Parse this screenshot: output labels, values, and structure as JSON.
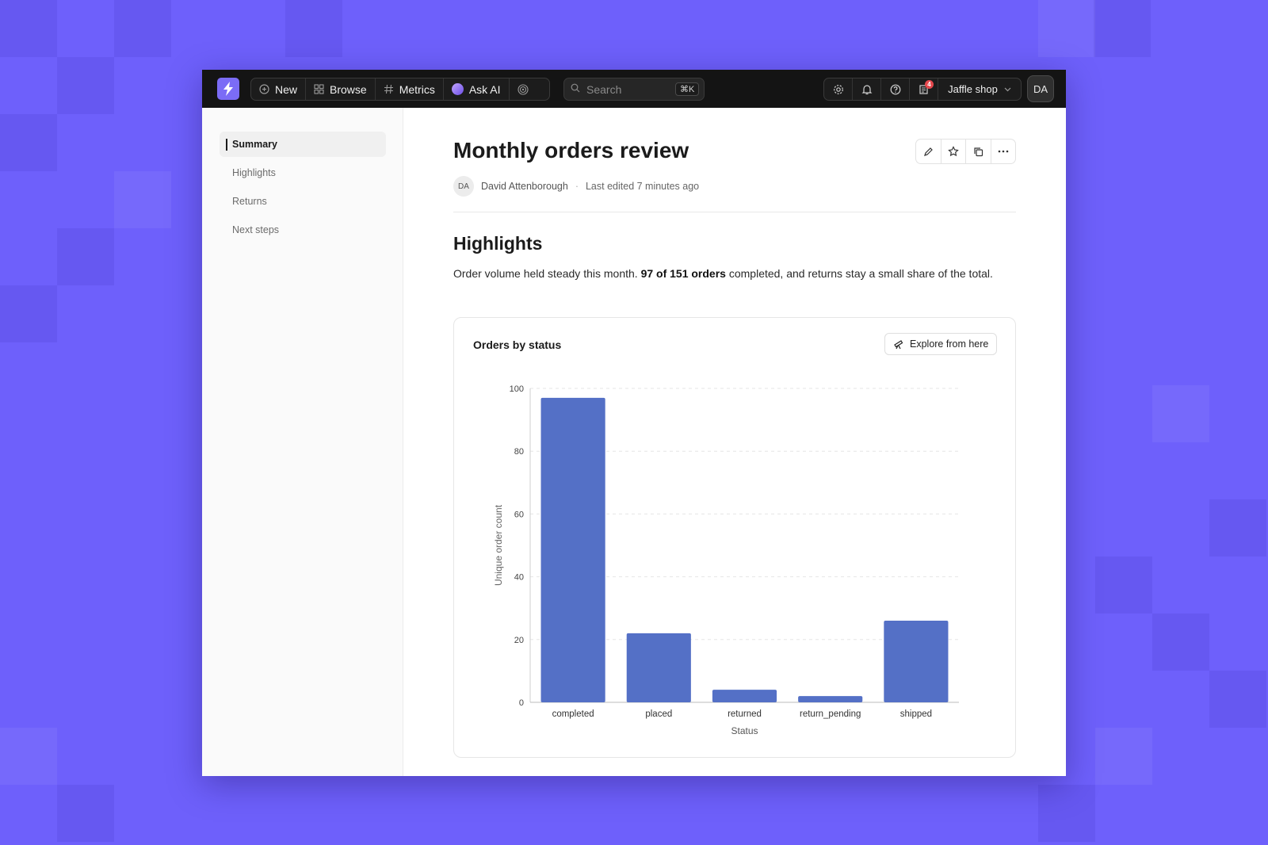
{
  "topbar": {
    "new_label": "New",
    "browse_label": "Browse",
    "metrics_label": "Metrics",
    "ask_ai_label": "Ask AI",
    "search_placeholder": "Search",
    "search_shortcut": "⌘K",
    "notifications_count": "4",
    "org_name": "Jaffle shop",
    "user_initials": "DA"
  },
  "sidebar": {
    "items": [
      {
        "label": "Summary",
        "active": true
      },
      {
        "label": "Highlights",
        "active": false
      },
      {
        "label": "Returns",
        "active": false
      },
      {
        "label": "Next steps",
        "active": false
      }
    ]
  },
  "document": {
    "title": "Monthly orders review",
    "author_initials": "DA",
    "author": "David Attenborough",
    "separator": "·",
    "last_edited": "Last edited 7 minutes ago",
    "section_title": "Highlights",
    "paragraph_pre": "Order volume held steady this month. ",
    "paragraph_bold": "97 of 151 orders",
    "paragraph_post": " completed, and returns stay a small share of the total."
  },
  "card": {
    "title": "Orders by status",
    "explore_label": "Explore from here"
  },
  "colors": {
    "bar": "#5470c6",
    "accent": "#7b6cf6",
    "background": "#6e60fb"
  },
  "chart_data": {
    "type": "bar",
    "categories": [
      "completed",
      "placed",
      "returned",
      "return_pending",
      "shipped"
    ],
    "values": [
      97,
      22,
      4,
      2,
      26
    ],
    "title": "Orders by status",
    "xlabel": "Status",
    "ylabel": "Unique order count",
    "ylim": [
      0,
      100
    ],
    "yticks": [
      0,
      20,
      40,
      60,
      80,
      100
    ],
    "grid": true
  }
}
